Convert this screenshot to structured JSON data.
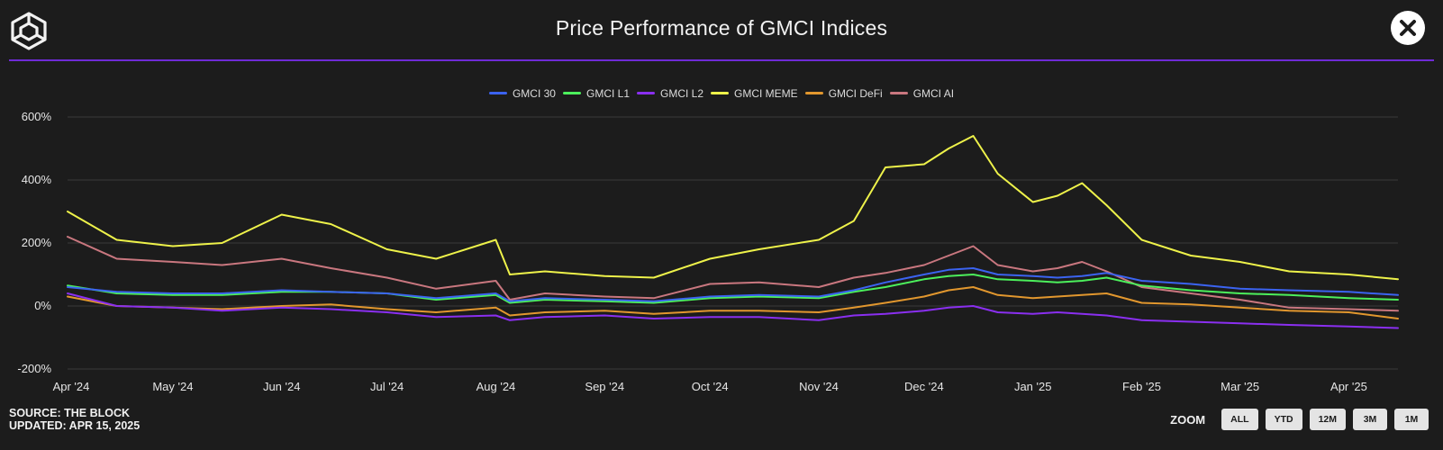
{
  "header": {
    "title": "Price Performance of GMCI Indices",
    "close_icon": "close-icon",
    "logo_icon": "the-block-cube-logo"
  },
  "footer": {
    "source": "SOURCE: THE BLOCK",
    "updated": "UPDATED: APR 15, 2025"
  },
  "zoom": {
    "label": "ZOOM",
    "buttons": [
      "ALL",
      "YTD",
      "12M",
      "3M",
      "1M"
    ]
  },
  "colors": {
    "background": "#1c1c1c",
    "divider": "#6f2bd6",
    "grid": "#3a3a3a"
  },
  "chart_data": {
    "type": "line",
    "title": "Price Performance of GMCI Indices",
    "legend_position": "top-center",
    "grid": true,
    "ylim": [
      -200,
      600
    ],
    "y_ticks": [
      600,
      400,
      200,
      0,
      -200
    ],
    "y_tick_labels": [
      "600%",
      "400%",
      "200%",
      "0%",
      "-200%"
    ],
    "x_range": [
      "2024-04-01",
      "2025-04-15"
    ],
    "x_tick_labels": [
      "Apr '24",
      "May '24",
      "Jun '24",
      "Jul '24",
      "Aug '24",
      "Sep '24",
      "Oct '24",
      "Nov '24",
      "Dec '24",
      "Jan '25",
      "Feb '25",
      "Mar '25",
      "Apr '25"
    ],
    "x": [
      "2024-04-01",
      "2024-04-15",
      "2024-05-01",
      "2024-05-15",
      "2024-06-01",
      "2024-06-15",
      "2024-07-01",
      "2024-07-15",
      "2024-08-01",
      "2024-08-05",
      "2024-08-15",
      "2024-09-01",
      "2024-09-15",
      "2024-10-01",
      "2024-10-15",
      "2024-11-01",
      "2024-11-11",
      "2024-11-20",
      "2024-12-01",
      "2024-12-08",
      "2024-12-15",
      "2024-12-22",
      "2025-01-01",
      "2025-01-08",
      "2025-01-15",
      "2025-01-22",
      "2025-02-01",
      "2025-02-15",
      "2025-03-01",
      "2025-03-15",
      "2025-04-01",
      "2025-04-15"
    ],
    "series": [
      {
        "name": "GMCI 30",
        "color": "#3b63f0",
        "values": [
          60,
          45,
          40,
          40,
          50,
          45,
          40,
          25,
          40,
          15,
          25,
          20,
          15,
          30,
          35,
          30,
          50,
          75,
          100,
          115,
          120,
          100,
          95,
          90,
          95,
          105,
          80,
          70,
          55,
          50,
          45,
          35
        ]
      },
      {
        "name": "GMCI L1",
        "color": "#4cf05c",
        "values": [
          65,
          40,
          35,
          35,
          45,
          45,
          40,
          20,
          35,
          10,
          20,
          15,
          10,
          25,
          30,
          25,
          45,
          60,
          85,
          95,
          100,
          85,
          80,
          75,
          80,
          90,
          65,
          50,
          40,
          35,
          25,
          20
        ]
      },
      {
        "name": "GMCI L2",
        "color": "#8a2ff0",
        "values": [
          40,
          0,
          -5,
          -15,
          -5,
          -10,
          -20,
          -35,
          -30,
          -45,
          -35,
          -30,
          -40,
          -35,
          -35,
          -45,
          -30,
          -25,
          -15,
          -5,
          0,
          -20,
          -25,
          -20,
          -25,
          -30,
          -45,
          -50,
          -55,
          -60,
          -65,
          -70
        ]
      },
      {
        "name": "GMCI MEME",
        "color": "#eef24a",
        "values": [
          300,
          210,
          190,
          200,
          290,
          260,
          180,
          150,
          210,
          100,
          110,
          95,
          90,
          150,
          180,
          210,
          270,
          440,
          450,
          500,
          540,
          420,
          330,
          350,
          390,
          320,
          210,
          160,
          140,
          110,
          100,
          85
        ]
      },
      {
        "name": "GMCI DeFi",
        "color": "#e2972e",
        "values": [
          30,
          0,
          -5,
          -10,
          0,
          5,
          -10,
          -20,
          -5,
          -30,
          -20,
          -15,
          -25,
          -15,
          -15,
          -20,
          -5,
          10,
          30,
          50,
          60,
          35,
          25,
          30,
          35,
          40,
          10,
          5,
          -5,
          -15,
          -20,
          -40
        ]
      },
      {
        "name": "GMCI AI",
        "color": "#c9777f",
        "values": [
          220,
          150,
          140,
          130,
          150,
          120,
          90,
          55,
          80,
          20,
          40,
          30,
          25,
          70,
          75,
          60,
          90,
          105,
          130,
          160,
          190,
          130,
          110,
          120,
          140,
          110,
          60,
          40,
          20,
          -5,
          -10,
          -15
        ]
      }
    ]
  }
}
